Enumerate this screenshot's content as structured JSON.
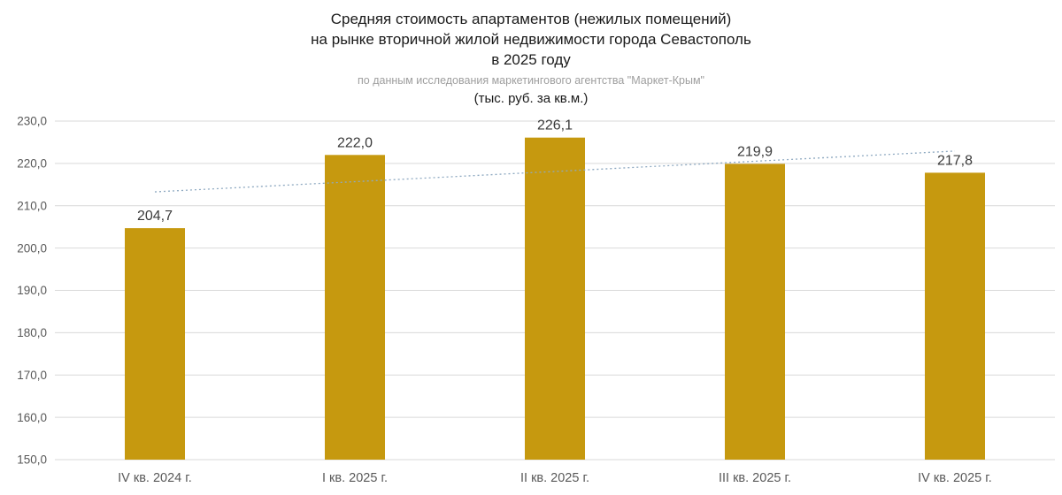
{
  "chart": {
    "title_line1": "Средняя стоимость апартаментов (нежилых помещений)",
    "title_line2": "на рынке вторичной жилой недвижимости города Севастополь",
    "title_line3": "в 2025 году",
    "subtitle": "по данным исследования маркетингового агентства \"Маркет-Крым\"",
    "units": "(тыс. руб. за кв.м.)"
  },
  "chart_data": {
    "type": "bar",
    "title": "Средняя стоимость апартаментов (нежилых помещений) на рынке вторичной жилой недвижимости города Севастополь в 2025 году",
    "subtitle": "по данным исследования маркетингового агентства \"Маркет-Крым\"",
    "units_label": "(тыс. руб. за кв.м.)",
    "categories": [
      "IV кв. 2024 г.",
      "I кв. 2025 г.",
      "II кв. 2025 г.",
      "III кв. 2025 г.",
      "IV кв. 2025 г."
    ],
    "values": [
      204.7,
      222.0,
      226.1,
      219.9,
      217.8
    ],
    "value_labels": [
      "204,7",
      "222,0",
      "226,1",
      "219,9",
      "217,8"
    ],
    "xlabel": "",
    "ylabel": "",
    "ylim": [
      150,
      230
    ],
    "ytick_step": 10,
    "ytick_labels": [
      "150,0",
      "160,0",
      "170,0",
      "180,0",
      "190,0",
      "200,0",
      "210,0",
      "220,0",
      "230,0"
    ],
    "grid": true,
    "legend": "none",
    "trendline": true,
    "colors": {
      "bar": "#C6990F",
      "trendline": "#8EA9C1",
      "gridline": "#D9D9D9",
      "tick_text": "#595959",
      "value_text": "#3A3A3A"
    }
  }
}
